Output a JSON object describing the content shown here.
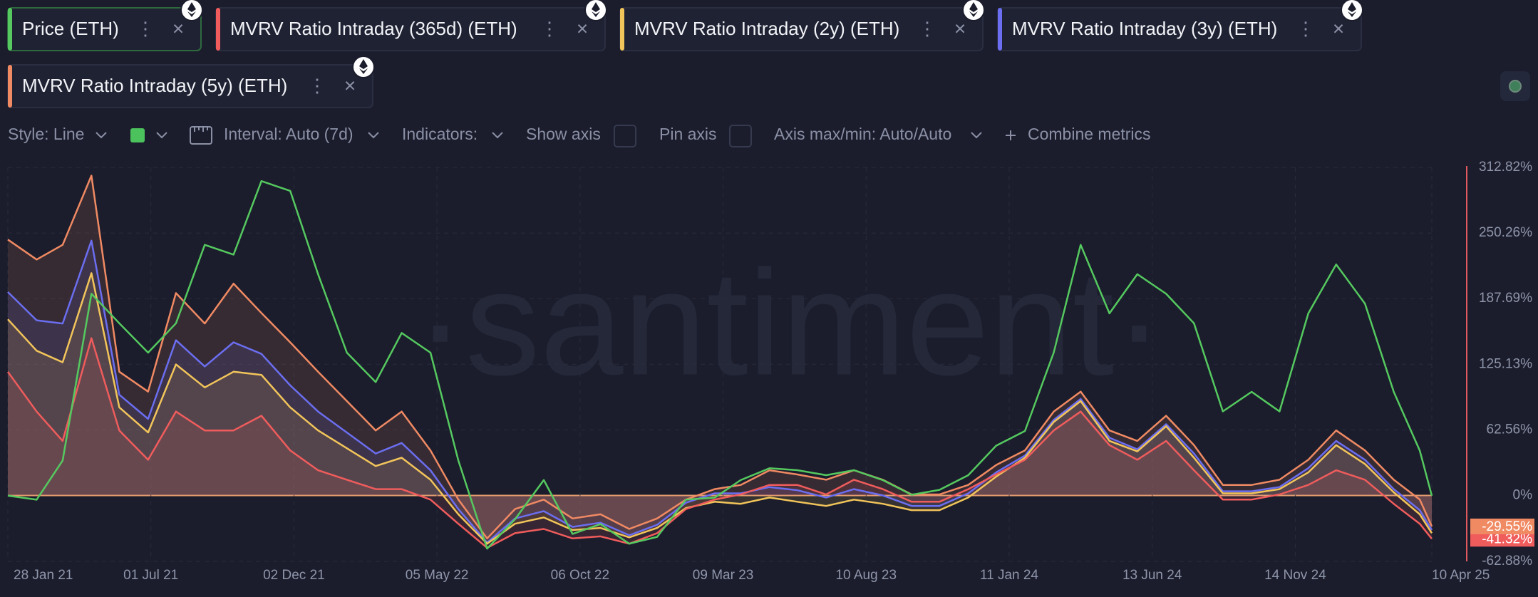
{
  "toolbar": {
    "style": "Style: Line",
    "interval": "Interval: Auto (7d)",
    "indicators": "Indicators:",
    "show_axis": "Show axis",
    "pin_axis": "Pin axis",
    "axis_range": "Axis max/min: Auto/Auto",
    "combine": "Combine metrics"
  },
  "watermark": "·santiment·",
  "chart_data": {
    "type": "line",
    "x": [
      "2021-01-28",
      "2021-02-28",
      "2021-03-28",
      "2021-04-28",
      "2021-05-28",
      "2021-06-28",
      "2021-07-28",
      "2021-08-28",
      "2021-09-28",
      "2021-10-28",
      "2021-11-28",
      "2021-12-28",
      "2022-01-28",
      "2022-02-28",
      "2022-03-28",
      "2022-04-28",
      "2022-05-28",
      "2022-06-28",
      "2022-07-28",
      "2022-08-28",
      "2022-09-28",
      "2022-10-28",
      "2022-11-28",
      "2022-12-28",
      "2023-01-28",
      "2023-02-28",
      "2023-03-28",
      "2023-04-28",
      "2023-05-28",
      "2023-06-28",
      "2023-07-28",
      "2023-08-28",
      "2023-09-28",
      "2023-10-28",
      "2023-11-28",
      "2023-12-28",
      "2024-01-28",
      "2024-02-28",
      "2024-03-28",
      "2024-04-28",
      "2024-05-28",
      "2024-06-28",
      "2024-07-28",
      "2024-08-28",
      "2024-09-28",
      "2024-10-28",
      "2024-11-28",
      "2024-12-28",
      "2025-01-28",
      "2025-02-28",
      "2025-03-28",
      "2025-04-10"
    ],
    "xlim": [
      "2021-01-28",
      "2025-04-10"
    ],
    "xticks": [
      {
        "value": "2021-01-28",
        "label": "28 Jan 21"
      },
      {
        "value": "2021-07-01",
        "label": "01 Jul 21"
      },
      {
        "value": "2021-12-02",
        "label": "02 Dec 21"
      },
      {
        "value": "2022-05-05",
        "label": "05 May 22"
      },
      {
        "value": "2022-10-06",
        "label": "06 Oct 22"
      },
      {
        "value": "2023-03-09",
        "label": "09 Mar 23"
      },
      {
        "value": "2023-08-10",
        "label": "10 Aug 23"
      },
      {
        "value": "2024-01-11",
        "label": "11 Jan 24"
      },
      {
        "value": "2024-06-13",
        "label": "13 Jun 24"
      },
      {
        "value": "2024-11-14",
        "label": "14 Nov 24"
      },
      {
        "value": "2025-04-10",
        "label": "10 Apr 25"
      }
    ],
    "ylim": [
      -62.88,
      312.82
    ],
    "yticks": [
      {
        "value": 312.82,
        "label": "312.82%"
      },
      {
        "value": 250.26,
        "label": "250.26%"
      },
      {
        "value": 187.69,
        "label": "187.69%"
      },
      {
        "value": 125.13,
        "label": "125.13%"
      },
      {
        "value": 62.56,
        "label": "62.56%"
      },
      {
        "value": 0,
        "label": "0%"
      },
      {
        "value": -62.88,
        "label": "-62.88%"
      }
    ],
    "y2lim": [
      687,
      4365
    ],
    "grid": true,
    "series": [
      {
        "name": "Price (ETH)",
        "color": "#55c95f",
        "axis": "y2",
        "values": [
          1300,
          1263,
          1629,
          3185,
          2910,
          2636,
          2910,
          3642,
          3551,
          4237,
          4146,
          3368,
          2636,
          2361,
          2819,
          2636,
          1629,
          806,
          1080,
          1446,
          943,
          1035,
          852,
          916,
          1263,
          1282,
          1446,
          1556,
          1538,
          1492,
          1538,
          1446,
          1309,
          1355,
          1492,
          1767,
          1904,
          2636,
          3642,
          3002,
          3368,
          3185,
          2910,
          2087,
          2270,
          2087,
          3002,
          3459,
          3093,
          2270,
          1721,
          1300
        ]
      },
      {
        "name": "MVRV Ratio Intraday (365d) (ETH)",
        "color": "#f05c5c",
        "values": [
          118,
          80,
          52,
          150,
          62,
          34,
          80,
          62,
          62,
          76,
          43,
          24,
          15,
          6,
          6,
          -4,
          -27,
          -50,
          -36,
          -32,
          -41,
          -39,
          -46,
          -36,
          -13,
          -4,
          1,
          10,
          10,
          1,
          15,
          6,
          -6,
          -6,
          6,
          20,
          34,
          62,
          80,
          48,
          34,
          52,
          24,
          -4,
          -4,
          1,
          10,
          24,
          15,
          -8,
          -27,
          -41.32
        ],
        "value_labels": [
          null,
          null,
          null,
          null,
          null,
          null,
          null,
          null,
          null,
          null,
          null,
          null,
          null,
          null,
          null,
          null,
          null,
          null,
          null,
          null,
          null,
          null,
          null,
          null,
          null,
          null,
          null,
          null,
          null,
          null,
          null,
          null,
          null,
          null,
          null,
          null,
          null,
          null,
          null,
          null,
          null,
          null,
          null,
          null,
          null,
          null,
          null,
          null,
          null,
          null,
          null,
          "-41.32%"
        ]
      },
      {
        "name": "MVRV Ratio Intraday (2y) (ETH)",
        "color": "#f2c55a",
        "values": [
          168,
          138,
          127,
          212,
          84,
          60,
          125,
          103,
          118,
          115,
          84,
          62,
          45,
          28,
          36,
          15,
          -18,
          -46,
          -27,
          -21,
          -33,
          -31,
          -40,
          -31,
          -12,
          -6,
          -8,
          -2,
          -6,
          -10,
          -4,
          -8,
          -14,
          -14,
          -2,
          18,
          36,
          70,
          90,
          52,
          42,
          66,
          36,
          2,
          2,
          6,
          22,
          48,
          30,
          3,
          -18,
          -36
        ]
      },
      {
        "name": "MVRV Ratio Intraday (3y) (ETH)",
        "color": "#6b6ef0",
        "values": [
          194,
          167,
          164,
          243,
          96,
          73,
          148,
          123,
          146,
          135,
          105,
          80,
          60,
          40,
          50,
          24,
          -13,
          -45,
          -22,
          -15,
          -30,
          -26,
          -38,
          -28,
          -7,
          2,
          2,
          8,
          5,
          -2,
          6,
          0,
          -10,
          -10,
          2,
          22,
          38,
          72,
          92,
          55,
          44,
          68,
          40,
          4,
          4,
          8,
          26,
          52,
          34,
          6,
          -14,
          -33
        ]
      },
      {
        "name": "MVRV Ratio Intraday (5y) (ETH)",
        "color": "#f08a63",
        "values": [
          244,
          225,
          239,
          305,
          118,
          99,
          193,
          164,
          202,
          174,
          146,
          118,
          90,
          62,
          80,
          43,
          -4,
          -41,
          -13,
          -4,
          -22,
          -18,
          -32,
          -22,
          -4,
          6,
          10,
          24,
          20,
          15,
          24,
          15,
          1,
          1,
          10,
          29,
          43,
          80,
          99,
          62,
          52,
          76,
          48,
          10,
          10,
          15,
          34,
          62,
          43,
          15,
          -4,
          -29.55
        ],
        "value_labels": [
          null,
          null,
          null,
          null,
          null,
          null,
          null,
          null,
          null,
          null,
          null,
          null,
          null,
          null,
          null,
          null,
          null,
          null,
          null,
          null,
          null,
          null,
          null,
          null,
          null,
          null,
          null,
          null,
          null,
          null,
          null,
          null,
          null,
          null,
          null,
          null,
          null,
          null,
          null,
          null,
          null,
          null,
          null,
          null,
          null,
          null,
          null,
          null,
          null,
          null,
          null,
          "-29.55%"
        ]
      }
    ]
  }
}
